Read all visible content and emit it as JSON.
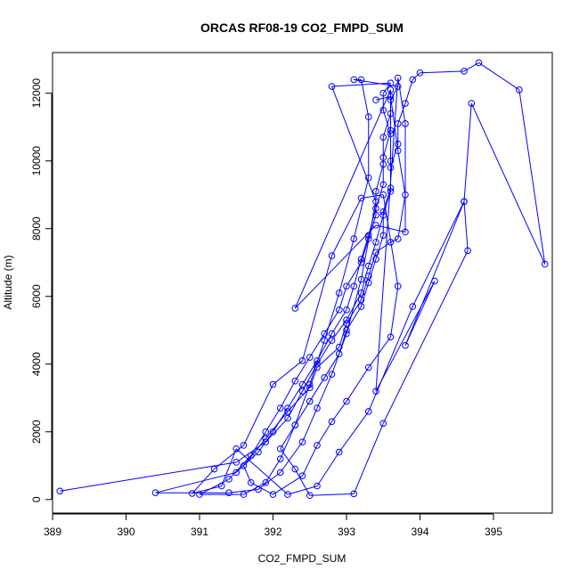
{
  "chart_data": {
    "type": "line",
    "title": "ORCAS RF08-19 CO2_FMPD_SUM",
    "xlabel": "CO2_FMPD_SUM",
    "ylabel": "Altitude (m)",
    "xlim": [
      389.0,
      395.8
    ],
    "ylim": [
      -400,
      13200
    ],
    "xticks": [
      389,
      390,
      391,
      392,
      393,
      394,
      395
    ],
    "yticks": [
      0,
      2000,
      4000,
      6000,
      8000,
      10000,
      12000
    ],
    "grid": false,
    "legend": "none",
    "marker": "open-circle",
    "series": [
      {
        "color": "#0000ff",
        "points": [
          [
            389.1,
            250
          ],
          [
            391.5,
            1100
          ],
          [
            391.9,
            1700
          ],
          [
            392.2,
            2400
          ],
          [
            392.4,
            3200
          ],
          [
            392.6,
            4000
          ],
          [
            392.8,
            4700
          ],
          [
            393.0,
            5300
          ],
          [
            393.2,
            6100
          ],
          [
            393.3,
            6900
          ],
          [
            393.4,
            7600
          ],
          [
            393.5,
            8400
          ],
          [
            393.6,
            9100
          ],
          [
            393.6,
            9800
          ],
          [
            393.7,
            10500
          ],
          [
            393.7,
            11100
          ],
          [
            393.8,
            11700
          ],
          [
            393.9,
            12400
          ],
          [
            394.0,
            12600
          ],
          [
            394.6,
            12650
          ],
          [
            394.8,
            12900
          ],
          [
            395.35,
            12100
          ],
          [
            395.7,
            6950
          ],
          [
            394.7,
            11700
          ],
          [
            394.6,
            8800
          ],
          [
            394.65,
            7350
          ],
          [
            393.5,
            2250
          ],
          [
            393.1,
            170
          ],
          [
            392.5,
            120
          ],
          [
            392.3,
            900
          ],
          [
            392.1,
            1500
          ],
          [
            392.3,
            2200
          ],
          [
            392.5,
            2900
          ],
          [
            392.7,
            3600
          ],
          [
            392.9,
            4300
          ],
          [
            393.0,
            5000
          ],
          [
            393.2,
            5700
          ],
          [
            393.3,
            6400
          ],
          [
            393.4,
            7100
          ],
          [
            393.5,
            7800
          ],
          [
            393.5,
            8500
          ],
          [
            393.6,
            9200
          ],
          [
            393.6,
            10000
          ],
          [
            393.6,
            10800
          ],
          [
            393.5,
            11500
          ],
          [
            393.5,
            12000
          ],
          [
            393.6,
            12300
          ],
          [
            392.8,
            12200
          ],
          [
            393.4,
            8800
          ],
          [
            393.2,
            6500
          ],
          [
            393.0,
            4900
          ],
          [
            392.8,
            3700
          ],
          [
            392.6,
            2700
          ],
          [
            392.4,
            1700
          ],
          [
            392.1,
            800
          ],
          [
            391.8,
            300
          ],
          [
            391.4,
            200
          ],
          [
            390.4,
            200
          ],
          [
            391.5,
            800
          ],
          [
            391.8,
            1400
          ],
          [
            392.0,
            2000
          ],
          [
            392.2,
            2700
          ],
          [
            392.4,
            3400
          ],
          [
            392.6,
            4100
          ],
          [
            392.8,
            4900
          ],
          [
            393.0,
            5600
          ],
          [
            393.1,
            6300
          ],
          [
            393.2,
            7100
          ],
          [
            393.3,
            7800
          ],
          [
            393.4,
            8600
          ],
          [
            393.5,
            9300
          ],
          [
            393.5,
            10100
          ],
          [
            393.6,
            10900
          ],
          [
            393.6,
            11800
          ],
          [
            393.7,
            12200
          ],
          [
            393.1,
            12400
          ],
          [
            393.2,
            12400
          ],
          [
            393.3,
            11300
          ],
          [
            393.3,
            9500
          ],
          [
            393.1,
            7700
          ],
          [
            392.9,
            6100
          ],
          [
            392.7,
            4700
          ],
          [
            392.5,
            3400
          ],
          [
            392.3,
            2200
          ],
          [
            392.1,
            1200
          ],
          [
            391.9,
            500
          ],
          [
            391.6,
            150
          ],
          [
            391.0,
            150
          ],
          [
            391.4,
            600
          ],
          [
            391.7,
            1300
          ],
          [
            391.9,
            2000
          ],
          [
            392.1,
            2700
          ],
          [
            392.3,
            3500
          ],
          [
            392.5,
            4200
          ],
          [
            392.7,
            4900
          ],
          [
            392.9,
            5600
          ],
          [
            393.0,
            6300
          ],
          [
            393.2,
            7000
          ],
          [
            393.3,
            7700
          ],
          [
            393.4,
            8400
          ],
          [
            393.4,
            9100
          ],
          [
            393.5,
            9900
          ],
          [
            393.5,
            10700
          ],
          [
            393.6,
            11400
          ],
          [
            393.6,
            12100
          ],
          [
            392.3,
            5650
          ],
          [
            393.4,
            8100
          ],
          [
            393.8,
            7900
          ],
          [
            393.8,
            11100
          ],
          [
            393.7,
            12450
          ],
          [
            393.4,
            3200
          ],
          [
            394.2,
            6450
          ],
          [
            393.8,
            4550
          ],
          [
            394.6,
            8800
          ],
          [
            393.9,
            5700
          ],
          [
            393.3,
            2600
          ],
          [
            392.9,
            1400
          ],
          [
            392.6,
            400
          ],
          [
            392.2,
            150
          ],
          [
            391.5,
            1500
          ],
          [
            391.3,
            400
          ],
          [
            390.9,
            180
          ],
          [
            391.2,
            900
          ],
          [
            391.6,
            1600
          ],
          [
            392.0,
            3400
          ],
          [
            392.4,
            4100
          ],
          [
            392.8,
            7200
          ],
          [
            393.2,
            8900
          ],
          [
            393.5,
            9000
          ],
          [
            393.7,
            6300
          ],
          [
            393.6,
            4800
          ],
          [
            393.3,
            3900
          ],
          [
            393.0,
            2900
          ],
          [
            392.8,
            2300
          ],
          [
            392.6,
            1600
          ],
          [
            392.4,
            700
          ],
          [
            392.0,
            150
          ],
          [
            391.7,
            500
          ],
          [
            391.6,
            1000
          ],
          [
            391.9,
            1800
          ],
          [
            392.2,
            2600
          ],
          [
            392.5,
            3300
          ],
          [
            392.6,
            3900
          ],
          [
            392.9,
            4500
          ],
          [
            393.0,
            5200
          ],
          [
            393.2,
            5900
          ],
          [
            393.3,
            6600
          ],
          [
            393.4,
            7300
          ],
          [
            393.6,
            7600
          ],
          [
            393.7,
            7700
          ],
          [
            393.8,
            9000
          ],
          [
            393.7,
            10300
          ],
          [
            393.6,
            11900
          ],
          [
            393.4,
            11800
          ]
        ]
      }
    ]
  }
}
